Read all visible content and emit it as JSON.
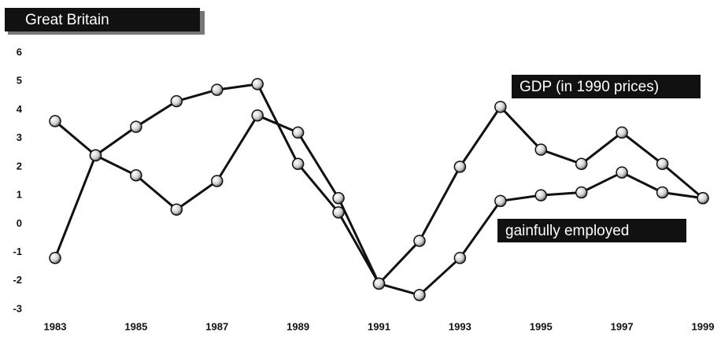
{
  "chart_data": {
    "type": "line",
    "title": "Great Britain",
    "x": [
      1983,
      1984,
      1985,
      1986,
      1987,
      1988,
      1989,
      1990,
      1991,
      1992,
      1993,
      1994,
      1995,
      1996,
      1997,
      1998,
      1999
    ],
    "series": [
      {
        "name": "GDP (in 1990 prices)",
        "color": "#111111",
        "values": [
          -1.2,
          2.4,
          3.4,
          4.3,
          4.7,
          4.9,
          2.1,
          0.4,
          -2.1,
          -0.6,
          2.0,
          4.1,
          2.6,
          2.1,
          3.2,
          2.1,
          0.9
        ]
      },
      {
        "name": "gainfully employed",
        "color": "#111111",
        "values": [
          3.6,
          2.4,
          1.7,
          0.5,
          1.5,
          3.8,
          3.2,
          0.9,
          -2.1,
          -2.5,
          -1.2,
          0.8,
          1.0,
          1.1,
          1.8,
          1.1,
          0.9
        ]
      }
    ],
    "xlim": [
      1983,
      1999
    ],
    "xticks": [
      1983,
      1985,
      1987,
      1989,
      1991,
      1993,
      1995,
      1997,
      1999
    ],
    "ylim": [
      -3,
      6
    ],
    "yticks": [
      -3,
      -2,
      -1,
      0,
      1,
      2,
      3,
      4,
      5,
      6
    ]
  }
}
